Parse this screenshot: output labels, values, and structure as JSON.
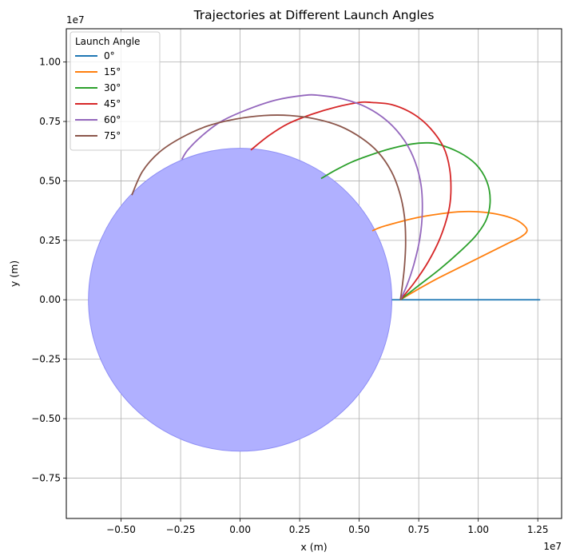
{
  "chart_data": {
    "type": "line",
    "title": "Trajectories at Different Launch Angles",
    "xlabel": "x (m)",
    "ylabel": "y (m)",
    "x_offset_label": "1e7",
    "y_offset_label": "1e7",
    "xlim": [
      -0.73,
      1.35
    ],
    "ylim": [
      -0.92,
      1.14
    ],
    "xticks": [
      -0.5,
      -0.25,
      0.0,
      0.25,
      0.5,
      0.75,
      1.0,
      1.25
    ],
    "xtick_labels": [
      "−0.50",
      "−0.25",
      "0.00",
      "0.25",
      "0.50",
      "0.75",
      "1.00",
      "1.25"
    ],
    "yticks": [
      -0.75,
      -0.5,
      -0.25,
      0.0,
      0.25,
      0.5,
      0.75,
      1.0
    ],
    "ytick_labels": [
      "−0.75",
      "−0.50",
      "−0.25",
      "0.00",
      "0.25",
      "0.50",
      "0.75",
      "1.00"
    ],
    "grid": true,
    "legend": {
      "title": "Launch Angle",
      "placement": "top-left"
    },
    "planet": {
      "radius": 0.637,
      "center": [
        0,
        0
      ],
      "color": "#b0b0ff",
      "edge_color": "#8f8ff5"
    },
    "series": [
      {
        "name": "0°",
        "color": "#1f77b4",
        "points": [
          [
            0.637,
            0
          ],
          [
            0.7,
            0
          ],
          [
            0.8,
            0
          ],
          [
            0.9,
            0
          ],
          [
            1.0,
            0
          ],
          [
            1.1,
            0
          ],
          [
            1.2,
            0
          ],
          [
            1.26,
            0
          ]
        ]
      },
      {
        "name": "15°",
        "color": "#ff7f0e",
        "points": [
          [
            0.673,
            0
          ],
          [
            0.74,
            0.04
          ],
          [
            0.83,
            0.09
          ],
          [
            0.93,
            0.14
          ],
          [
            1.03,
            0.19
          ],
          [
            1.12,
            0.235
          ],
          [
            1.18,
            0.265
          ],
          [
            1.205,
            0.29
          ],
          [
            1.19,
            0.315
          ],
          [
            1.15,
            0.34
          ],
          [
            1.08,
            0.36
          ],
          [
            1.0,
            0.37
          ],
          [
            0.92,
            0.37
          ],
          [
            0.83,
            0.36
          ],
          [
            0.74,
            0.345
          ],
          [
            0.66,
            0.325
          ],
          [
            0.59,
            0.305
          ],
          [
            0.555,
            0.29
          ]
        ]
      },
      {
        "name": "30°",
        "color": "#2ca02c",
        "points": [
          [
            0.673,
            0
          ],
          [
            0.75,
            0.06
          ],
          [
            0.84,
            0.13
          ],
          [
            0.92,
            0.2
          ],
          [
            0.99,
            0.27
          ],
          [
            1.035,
            0.34
          ],
          [
            1.05,
            0.42
          ],
          [
            1.035,
            0.5
          ],
          [
            0.99,
            0.57
          ],
          [
            0.92,
            0.62
          ],
          [
            0.83,
            0.655
          ],
          [
            0.78,
            0.66
          ],
          [
            0.72,
            0.655
          ],
          [
            0.63,
            0.635
          ],
          [
            0.55,
            0.61
          ],
          [
            0.47,
            0.58
          ],
          [
            0.4,
            0.545
          ],
          [
            0.34,
            0.51
          ]
        ]
      },
      {
        "name": "45°",
        "color": "#d62728",
        "points": [
          [
            0.673,
            0
          ],
          [
            0.73,
            0.07
          ],
          [
            0.79,
            0.16
          ],
          [
            0.84,
            0.26
          ],
          [
            0.875,
            0.37
          ],
          [
            0.885,
            0.45
          ],
          [
            0.88,
            0.55
          ],
          [
            0.855,
            0.64
          ],
          [
            0.8,
            0.72
          ],
          [
            0.73,
            0.78
          ],
          [
            0.64,
            0.82
          ],
          [
            0.55,
            0.83
          ],
          [
            0.5,
            0.83
          ],
          [
            0.4,
            0.81
          ],
          [
            0.3,
            0.78
          ],
          [
            0.2,
            0.74
          ],
          [
            0.12,
            0.69
          ],
          [
            0.045,
            0.63
          ]
        ]
      },
      {
        "name": "60°",
        "color": "#9467bd",
        "points": [
          [
            0.673,
            0
          ],
          [
            0.7,
            0.06
          ],
          [
            0.73,
            0.15
          ],
          [
            0.755,
            0.26
          ],
          [
            0.765,
            0.37
          ],
          [
            0.76,
            0.48
          ],
          [
            0.735,
            0.58
          ],
          [
            0.69,
            0.67
          ],
          [
            0.62,
            0.75
          ],
          [
            0.53,
            0.81
          ],
          [
            0.43,
            0.845
          ],
          [
            0.33,
            0.86
          ],
          [
            0.27,
            0.86
          ],
          [
            0.15,
            0.84
          ],
          [
            0.03,
            0.8
          ],
          [
            -0.08,
            0.75
          ],
          [
            -0.16,
            0.69
          ],
          [
            -0.22,
            0.63
          ],
          [
            -0.245,
            0.59
          ]
        ]
      },
      {
        "name": "75°",
        "color": "#8c564b",
        "points": [
          [
            0.673,
            0
          ],
          [
            0.68,
            0.05
          ],
          [
            0.69,
            0.14
          ],
          [
            0.695,
            0.24
          ],
          [
            0.69,
            0.35
          ],
          [
            0.67,
            0.45
          ],
          [
            0.635,
            0.54
          ],
          [
            0.58,
            0.62
          ],
          [
            0.51,
            0.68
          ],
          [
            0.42,
            0.73
          ],
          [
            0.32,
            0.76
          ],
          [
            0.21,
            0.775
          ],
          [
            0.1,
            0.775
          ],
          [
            -0.02,
            0.76
          ],
          [
            -0.14,
            0.73
          ],
          [
            -0.25,
            0.68
          ],
          [
            -0.34,
            0.62
          ],
          [
            -0.41,
            0.54
          ],
          [
            -0.455,
            0.44
          ]
        ]
      }
    ]
  }
}
